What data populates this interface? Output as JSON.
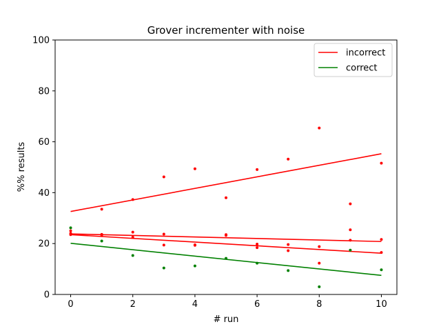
{
  "chart_data": {
    "type": "scatter",
    "title": "Grover incrementer with noise",
    "xlabel": "# run",
    "ylabel": "%% results",
    "xlim": [
      -0.5,
      10.5
    ],
    "ylim": [
      0,
      100
    ],
    "xticks": [
      "0",
      "2",
      "4",
      "6",
      "8",
      "10"
    ],
    "yticks": [
      "0",
      "20",
      "40",
      "60",
      "80",
      "100"
    ],
    "grid": false,
    "legend_position": "top-right",
    "legend": [
      {
        "label": "incorrect",
        "color": "#ff0000"
      },
      {
        "label": "correct",
        "color": "#008000"
      }
    ],
    "series": [
      {
        "color": "#ff0000",
        "points": [
          [
            0,
            23.5
          ],
          [
            1,
            33.5
          ],
          [
            2,
            37.3
          ],
          [
            3,
            46.2
          ],
          [
            4,
            49.4
          ],
          [
            5,
            38.0
          ],
          [
            6,
            49.1
          ],
          [
            7,
            53.2
          ],
          [
            8,
            65.4
          ],
          [
            9,
            35.6
          ],
          [
            10,
            51.6
          ],
          [
            0,
            25.0
          ],
          [
            1,
            23.6
          ],
          [
            2,
            24.5
          ],
          [
            3,
            23.7
          ],
          [
            4,
            19.3
          ],
          [
            5,
            23.5
          ],
          [
            6,
            19.8
          ],
          [
            7,
            19.6
          ],
          [
            8,
            18.8
          ],
          [
            9,
            25.4
          ],
          [
            10,
            21.6
          ],
          [
            0,
            24.0
          ],
          [
            1,
            23.3
          ],
          [
            2,
            22.5
          ],
          [
            3,
            19.4
          ],
          [
            4,
            19.5
          ],
          [
            5,
            23.2
          ],
          [
            6,
            18.4
          ],
          [
            7,
            17.2
          ],
          [
            8,
            12.3
          ],
          [
            9,
            21.3
          ],
          [
            10,
            16.5
          ]
        ],
        "trend_lines": [
          [
            [
              0,
              32.6
            ],
            [
              10,
              55.3
            ]
          ],
          [
            [
              0,
              23.8
            ],
            [
              10,
              20.8
            ]
          ],
          [
            [
              0,
              23.5
            ],
            [
              10,
              16.2
            ]
          ]
        ]
      },
      {
        "color": "#008000",
        "points": [
          [
            0,
            26.2
          ],
          [
            1,
            21.0
          ],
          [
            2,
            15.3
          ],
          [
            3,
            10.4
          ],
          [
            4,
            11.2
          ],
          [
            5,
            14.2
          ],
          [
            6,
            12.3
          ],
          [
            7,
            9.4
          ],
          [
            8,
            3.0
          ],
          [
            9,
            17.4
          ],
          [
            10,
            9.7
          ]
        ],
        "trend_lines": [
          [
            [
              0,
              20.1
            ],
            [
              10,
              7.5
            ]
          ]
        ]
      }
    ]
  }
}
